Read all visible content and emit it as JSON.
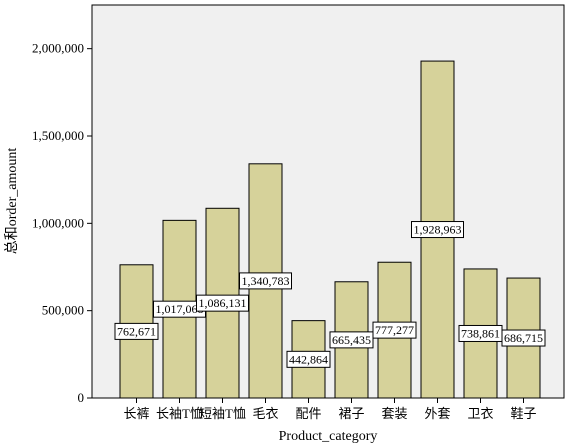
{
  "chart_data": {
    "type": "bar",
    "xlabel": "Product_category",
    "ylabel": "总和order_amount",
    "categories": [
      "长裤",
      "长袖T恤",
      "短袖T恤",
      "毛衣",
      "配件",
      "裙子",
      "套装",
      "外套",
      "卫衣",
      "鞋子"
    ],
    "values": [
      762671,
      1017068,
      1086131,
      1340783,
      442864,
      665435,
      777277,
      1928963,
      738861,
      686715
    ],
    "data_labels": [
      "762,671",
      "1,017,068",
      "1,086,131",
      "1,340,783",
      "442,864",
      "665,435",
      "777,277",
      "1,928,963",
      "738,861",
      "686,715"
    ],
    "ylim": [
      0,
      2250000
    ],
    "yticks": [
      0,
      500000,
      1000000,
      1500000,
      2000000
    ],
    "ytick_labels": [
      "0",
      "500,000",
      "1,000,000",
      "1,500,000",
      "2,000,000"
    ],
    "grid": false,
    "legend": false,
    "colors": {
      "bar_fill": "#d6d29a",
      "bar_stroke": "#000000",
      "plot_background": "#f0f0f0",
      "frame": "#000000",
      "label_box": "#ffffff"
    }
  }
}
